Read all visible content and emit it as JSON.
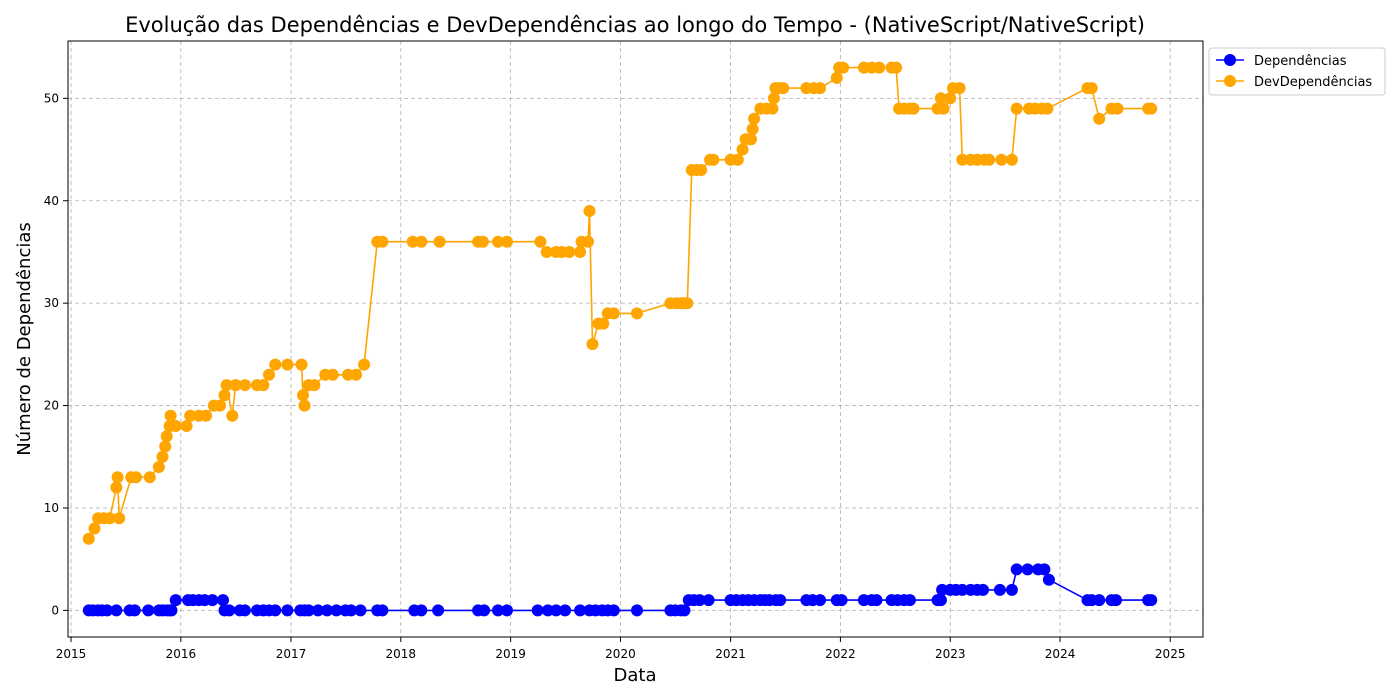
{
  "chart_data": {
    "type": "line",
    "title": "Evolução das Dependências e DevDependências ao longo do Tempo - (NativeScript/NativeScript)",
    "xlabel": "Data",
    "ylabel": "Número de Dependências",
    "x_ticks": [
      "2015",
      "2016",
      "2017",
      "2018",
      "2019",
      "2020",
      "2021",
      "2022",
      "2023",
      "2024",
      "2025"
    ],
    "y_ticks": [
      0,
      10,
      20,
      30,
      40,
      50
    ],
    "xlim": [
      "2014-12-22",
      "2025-04-20"
    ],
    "ylim": [
      -2.6,
      55.6
    ],
    "grid": true,
    "legend_position": "upper-right-outside",
    "series": [
      {
        "name": "Dependências",
        "color": "#0000ff",
        "marker": "circle",
        "points": [
          [
            "2015-03-01",
            0
          ],
          [
            "2015-03-15",
            0
          ],
          [
            "2015-04-01",
            0
          ],
          [
            "2015-04-15",
            0
          ],
          [
            "2015-05-01",
            0
          ],
          [
            "2015-06-01",
            0
          ],
          [
            "2015-07-15",
            0
          ],
          [
            "2015-08-01",
            0
          ],
          [
            "2015-09-15",
            0
          ],
          [
            "2015-10-20",
            0
          ],
          [
            "2015-11-01",
            0
          ],
          [
            "2015-11-15",
            0
          ],
          [
            "2015-11-25",
            0
          ],
          [
            "2015-12-01",
            0
          ],
          [
            "2015-12-15",
            1
          ],
          [
            "2016-01-25",
            1
          ],
          [
            "2016-02-10",
            1
          ],
          [
            "2016-03-01",
            1
          ],
          [
            "2016-03-20",
            1
          ],
          [
            "2016-04-15",
            1
          ],
          [
            "2016-05-20",
            1
          ],
          [
            "2016-05-25",
            0
          ],
          [
            "2016-06-10",
            0
          ],
          [
            "2016-07-15",
            0
          ],
          [
            "2016-08-01",
            0
          ],
          [
            "2016-09-10",
            0
          ],
          [
            "2016-10-01",
            0
          ],
          [
            "2016-10-20",
            0
          ],
          [
            "2016-11-10",
            0
          ],
          [
            "2016-12-20",
            0
          ],
          [
            "2017-02-01",
            0
          ],
          [
            "2017-02-15",
            0
          ],
          [
            "2017-03-01",
            0
          ],
          [
            "2017-04-01",
            0
          ],
          [
            "2017-05-01",
            0
          ],
          [
            "2017-06-01",
            0
          ],
          [
            "2017-07-01",
            0
          ],
          [
            "2017-07-20",
            0
          ],
          [
            "2017-08-20",
            0
          ],
          [
            "2017-10-15",
            0
          ],
          [
            "2017-11-01",
            0
          ],
          [
            "2018-02-15",
            0
          ],
          [
            "2018-03-10",
            0
          ],
          [
            "2018-05-05",
            0
          ],
          [
            "2018-09-15",
            0
          ],
          [
            "2018-10-05",
            0
          ],
          [
            "2018-11-20",
            0
          ],
          [
            "2018-12-20",
            0
          ],
          [
            "2019-04-01",
            0
          ],
          [
            "2019-05-05",
            0
          ],
          [
            "2019-06-01",
            0
          ],
          [
            "2019-07-01",
            0
          ],
          [
            "2019-08-20",
            0
          ],
          [
            "2019-09-20",
            0
          ],
          [
            "2019-10-10",
            0
          ],
          [
            "2019-11-01",
            0
          ],
          [
            "2019-11-20",
            0
          ],
          [
            "2019-12-10",
            0
          ],
          [
            "2020-02-25",
            0
          ],
          [
            "2020-06-15",
            0
          ],
          [
            "2020-07-01",
            0
          ],
          [
            "2020-07-20",
            0
          ],
          [
            "2020-08-01",
            0
          ],
          [
            "2020-08-15",
            1
          ],
          [
            "2020-09-01",
            1
          ],
          [
            "2020-09-20",
            1
          ],
          [
            "2020-10-20",
            1
          ],
          [
            "2021-01-01",
            1
          ],
          [
            "2021-01-20",
            1
          ],
          [
            "2021-02-10",
            1
          ],
          [
            "2021-03-01",
            1
          ],
          [
            "2021-03-20",
            1
          ],
          [
            "2021-04-10",
            1
          ],
          [
            "2021-04-25",
            1
          ],
          [
            "2021-05-10",
            1
          ],
          [
            "2021-06-01",
            1
          ],
          [
            "2021-06-15",
            1
          ],
          [
            "2021-09-10",
            1
          ],
          [
            "2021-10-01",
            1
          ],
          [
            "2021-10-25",
            1
          ],
          [
            "2021-12-20",
            1
          ],
          [
            "2022-01-05",
            1
          ],
          [
            "2022-03-20",
            1
          ],
          [
            "2022-04-15",
            1
          ],
          [
            "2022-05-01",
            1
          ],
          [
            "2022-06-20",
            1
          ],
          [
            "2022-07-10",
            1
          ],
          [
            "2022-08-01",
            1
          ],
          [
            "2022-08-20",
            1
          ],
          [
            "2022-11-20",
            1
          ],
          [
            "2022-12-01",
            1
          ],
          [
            "2022-12-05",
            2
          ],
          [
            "2023-01-01",
            2
          ],
          [
            "2023-01-20",
            2
          ],
          [
            "2023-02-10",
            2
          ],
          [
            "2023-03-10",
            2
          ],
          [
            "2023-04-01",
            2
          ],
          [
            "2023-04-20",
            2
          ],
          [
            "2023-06-15",
            2
          ],
          [
            "2023-07-25",
            2
          ],
          [
            "2023-08-10",
            4
          ],
          [
            "2023-09-15",
            4
          ],
          [
            "2023-10-20",
            4
          ],
          [
            "2023-11-10",
            4
          ],
          [
            "2023-11-25",
            3
          ],
          [
            "2024-04-01",
            1
          ],
          [
            "2024-04-15",
            1
          ],
          [
            "2024-05-10",
            1
          ],
          [
            "2024-06-20",
            1
          ],
          [
            "2024-07-05",
            1
          ],
          [
            "2024-10-20",
            1
          ],
          [
            "2024-10-30",
            1
          ]
        ]
      },
      {
        "name": "DevDependências",
        "color": "#ffa500",
        "marker": "circle",
        "points": [
          [
            "2015-03-01",
            7
          ],
          [
            "2015-03-20",
            8
          ],
          [
            "2015-04-01",
            9
          ],
          [
            "2015-04-20",
            9
          ],
          [
            "2015-05-10",
            9
          ],
          [
            "2015-06-01",
            12
          ],
          [
            "2015-06-05",
            13
          ],
          [
            "2015-06-10",
            9
          ],
          [
            "2015-07-20",
            13
          ],
          [
            "2015-08-05",
            13
          ],
          [
            "2015-09-20",
            13
          ],
          [
            "2015-10-20",
            14
          ],
          [
            "2015-11-01",
            15
          ],
          [
            "2015-11-10",
            16
          ],
          [
            "2015-11-15",
            17
          ],
          [
            "2015-11-25",
            18
          ],
          [
            "2015-11-28",
            19
          ],
          [
            "2015-12-15",
            18
          ],
          [
            "2016-01-20",
            18
          ],
          [
            "2016-02-01",
            19
          ],
          [
            "2016-03-01",
            19
          ],
          [
            "2016-03-25",
            19
          ],
          [
            "2016-04-20",
            20
          ],
          [
            "2016-05-10",
            20
          ],
          [
            "2016-05-25",
            21
          ],
          [
            "2016-06-01",
            22
          ],
          [
            "2016-06-20",
            19
          ],
          [
            "2016-07-01",
            22
          ],
          [
            "2016-08-01",
            22
          ],
          [
            "2016-09-10",
            22
          ],
          [
            "2016-10-01",
            22
          ],
          [
            "2016-10-20",
            23
          ],
          [
            "2016-11-10",
            24
          ],
          [
            "2016-12-20",
            24
          ],
          [
            "2017-02-05",
            24
          ],
          [
            "2017-02-10",
            21
          ],
          [
            "2017-02-15",
            20
          ],
          [
            "2017-03-01",
            22
          ],
          [
            "2017-03-20",
            22
          ],
          [
            "2017-04-25",
            23
          ],
          [
            "2017-05-20",
            23
          ],
          [
            "2017-07-10",
            23
          ],
          [
            "2017-08-05",
            23
          ],
          [
            "2017-09-01",
            24
          ],
          [
            "2017-10-15",
            36
          ],
          [
            "2017-11-01",
            36
          ],
          [
            "2018-02-10",
            36
          ],
          [
            "2018-03-10",
            36
          ],
          [
            "2018-05-10",
            36
          ],
          [
            "2018-09-15",
            36
          ],
          [
            "2018-10-01",
            36
          ],
          [
            "2018-11-20",
            36
          ],
          [
            "2018-12-20",
            36
          ],
          [
            "2019-04-10",
            36
          ],
          [
            "2019-05-01",
            35
          ],
          [
            "2019-06-01",
            35
          ],
          [
            "2019-06-20",
            35
          ],
          [
            "2019-07-15",
            35
          ],
          [
            "2019-08-20",
            35
          ],
          [
            "2019-08-25",
            36
          ],
          [
            "2019-09-15",
            36
          ],
          [
            "2019-09-20",
            39
          ],
          [
            "2019-09-30",
            26
          ],
          [
            "2019-10-20",
            28
          ],
          [
            "2019-11-05",
            28
          ],
          [
            "2019-11-20",
            29
          ],
          [
            "2019-12-10",
            29
          ],
          [
            "2020-02-25",
            29
          ],
          [
            "2020-06-15",
            30
          ],
          [
            "2020-07-05",
            30
          ],
          [
            "2020-07-20",
            30
          ],
          [
            "2020-08-01",
            30
          ],
          [
            "2020-08-10",
            30
          ],
          [
            "2020-08-25",
            43
          ],
          [
            "2020-09-10",
            43
          ],
          [
            "2020-09-25",
            43
          ],
          [
            "2020-10-25",
            44
          ],
          [
            "2020-11-05",
            44
          ],
          [
            "2021-01-01",
            44
          ],
          [
            "2021-01-25",
            44
          ],
          [
            "2021-02-10",
            45
          ],
          [
            "2021-02-20",
            46
          ],
          [
            "2021-03-10",
            46
          ],
          [
            "2021-03-15",
            47
          ],
          [
            "2021-03-20",
            48
          ],
          [
            "2021-04-10",
            49
          ],
          [
            "2021-05-01",
            49
          ],
          [
            "2021-05-20",
            49
          ],
          [
            "2021-05-25",
            50
          ],
          [
            "2021-05-30",
            51
          ],
          [
            "2021-06-10",
            51
          ],
          [
            "2021-06-25",
            51
          ],
          [
            "2021-09-10",
            51
          ],
          [
            "2021-10-05",
            51
          ],
          [
            "2021-10-25",
            51
          ],
          [
            "2021-12-20",
            52
          ],
          [
            "2021-12-28",
            53
          ],
          [
            "2022-01-10",
            53
          ],
          [
            "2022-03-20",
            53
          ],
          [
            "2022-04-15",
            53
          ],
          [
            "2022-05-10",
            53
          ],
          [
            "2022-06-20",
            53
          ],
          [
            "2022-07-05",
            53
          ],
          [
            "2022-07-15",
            49
          ],
          [
            "2022-08-01",
            49
          ],
          [
            "2022-08-20",
            49
          ],
          [
            "2022-09-01",
            49
          ],
          [
            "2022-11-20",
            49
          ],
          [
            "2022-12-01",
            50
          ],
          [
            "2022-12-10",
            49
          ],
          [
            "2023-01-01",
            50
          ],
          [
            "2023-01-10",
            51
          ],
          [
            "2023-02-01",
            51
          ],
          [
            "2023-02-10",
            44
          ],
          [
            "2023-03-10",
            44
          ],
          [
            "2023-04-01",
            44
          ],
          [
            "2023-04-25",
            44
          ],
          [
            "2023-05-10",
            44
          ],
          [
            "2023-06-20",
            44
          ],
          [
            "2023-07-25",
            44
          ],
          [
            "2023-08-10",
            49
          ],
          [
            "2023-09-20",
            49
          ],
          [
            "2023-10-10",
            49
          ],
          [
            "2023-11-01",
            49
          ],
          [
            "2023-11-20",
            49
          ],
          [
            "2024-04-01",
            51
          ],
          [
            "2024-04-15",
            51
          ],
          [
            "2024-05-10",
            48
          ],
          [
            "2024-06-20",
            49
          ],
          [
            "2024-07-10",
            49
          ],
          [
            "2024-10-20",
            49
          ],
          [
            "2024-10-30",
            49
          ]
        ]
      }
    ]
  }
}
